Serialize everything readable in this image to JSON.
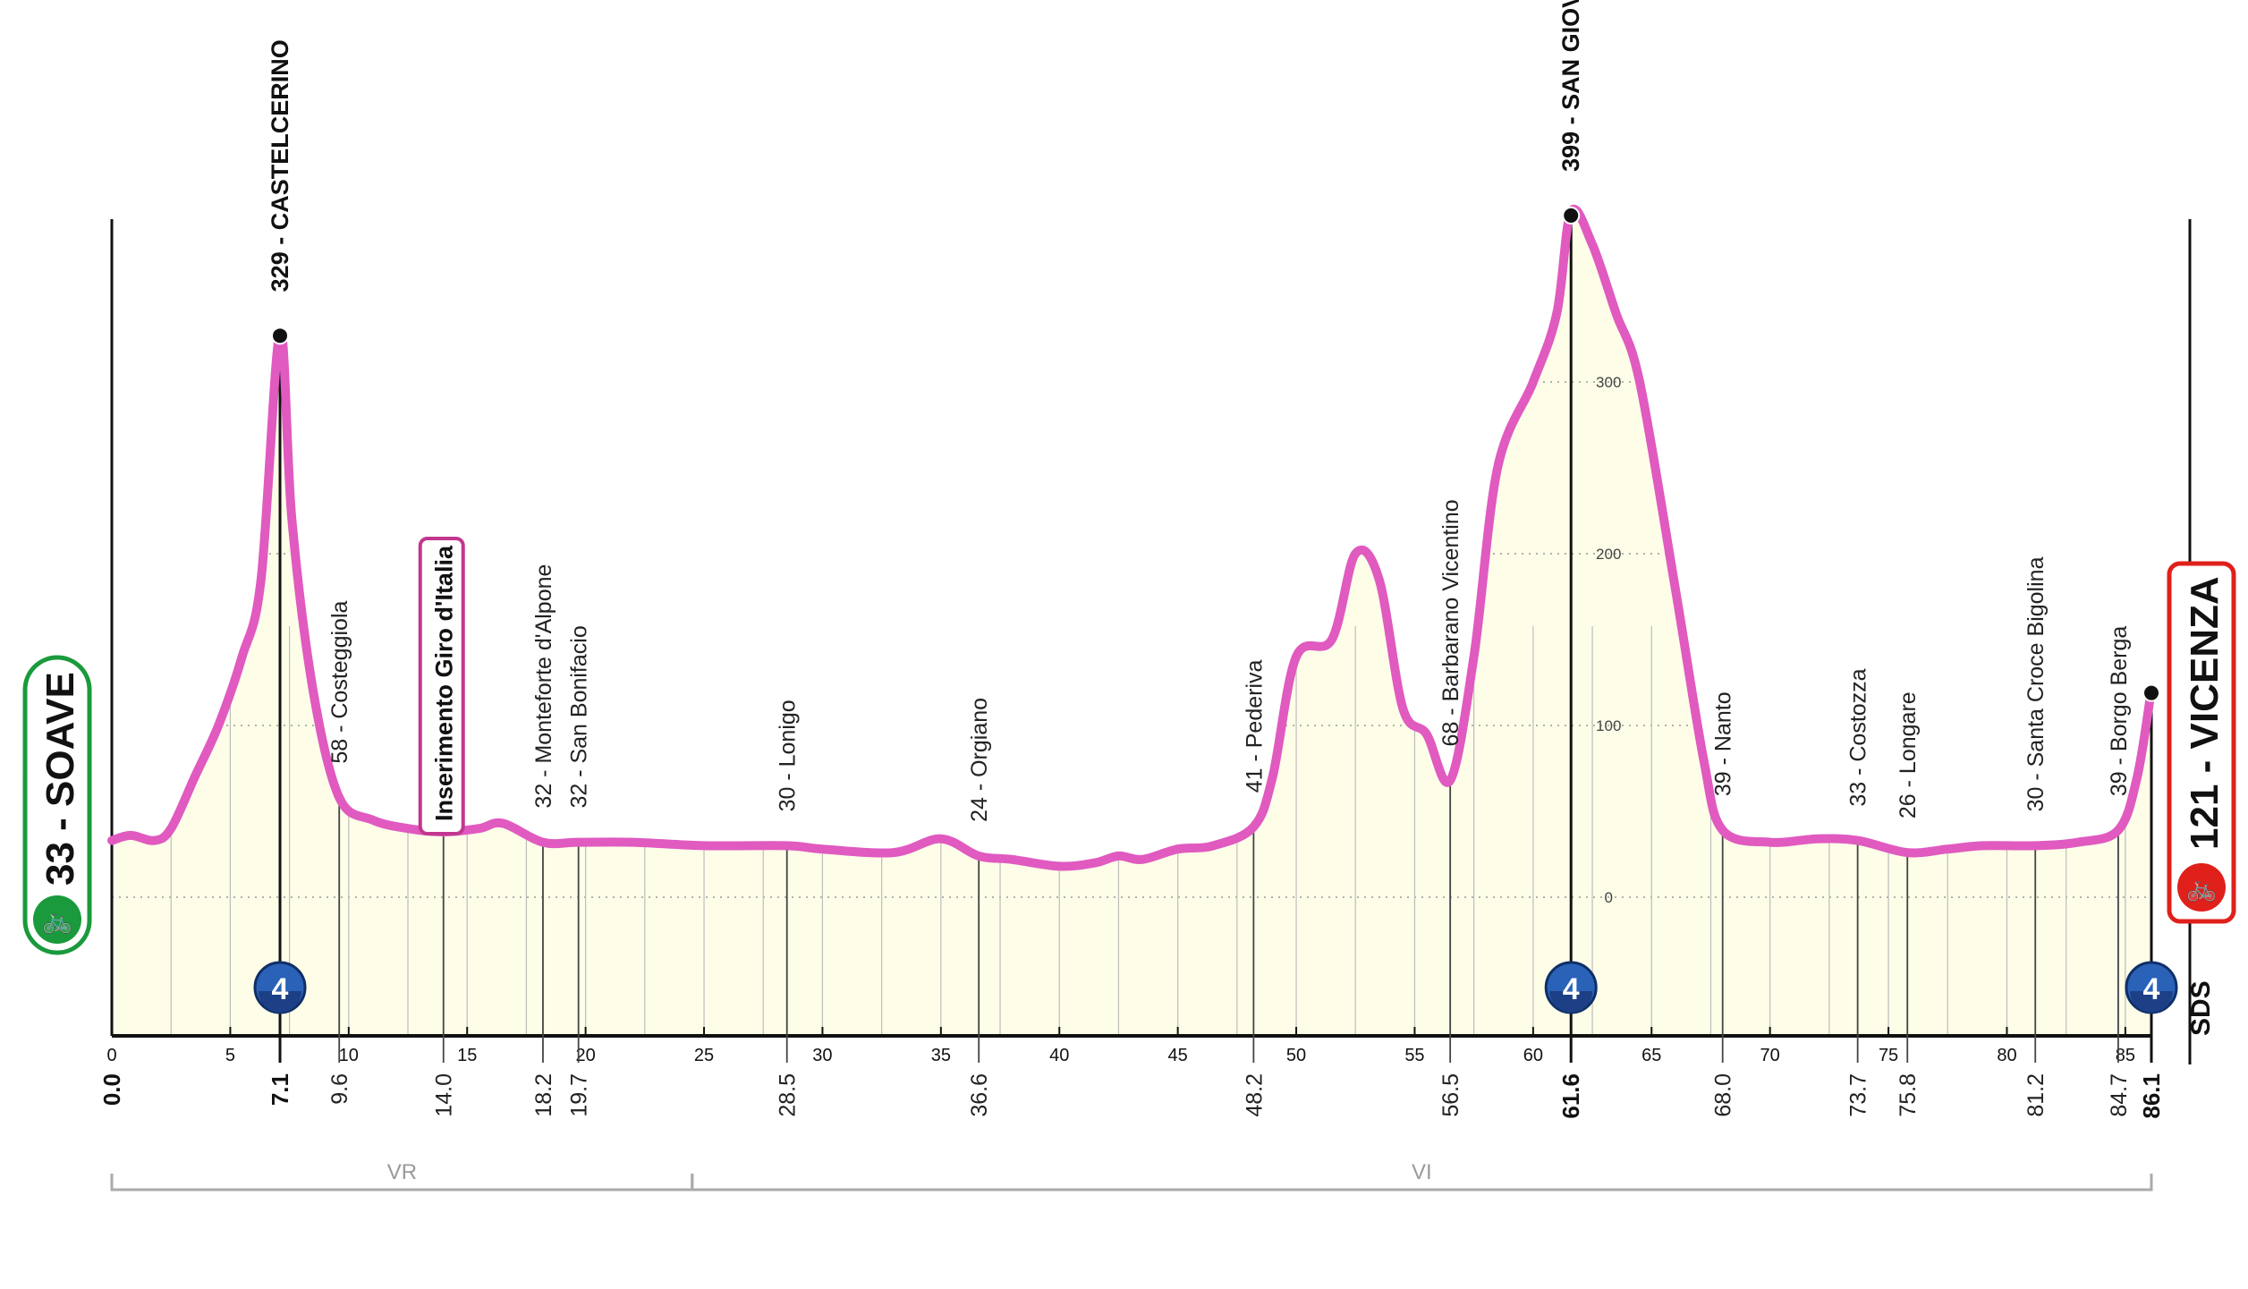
{
  "chart_data": {
    "type": "area",
    "title": "",
    "xlabel": "",
    "ylabel": "",
    "xlim": [
      0,
      86.1
    ],
    "x_ticks": [
      0,
      5,
      10,
      15,
      20,
      25,
      30,
      35,
      40,
      45,
      50,
      55,
      60,
      65,
      70,
      75,
      80,
      85
    ],
    "altitude_scale": [
      "300",
      "200",
      "100",
      "0"
    ],
    "profile": [
      [
        0,
        33
      ],
      [
        0.8,
        36
      ],
      [
        1.8,
        33
      ],
      [
        2.5,
        40
      ],
      [
        3.5,
        70
      ],
      [
        4.5,
        100
      ],
      [
        5.5,
        140
      ],
      [
        6.3,
        185
      ],
      [
        7.1,
        329
      ],
      [
        7.6,
        220
      ],
      [
        8.5,
        120
      ],
      [
        9.6,
        58
      ],
      [
        11,
        45
      ],
      [
        12.5,
        40
      ],
      [
        14.0,
        38
      ],
      [
        15.5,
        40
      ],
      [
        16.5,
        43
      ],
      [
        18.2,
        32
      ],
      [
        19.7,
        32
      ],
      [
        22,
        32
      ],
      [
        25,
        30
      ],
      [
        28.5,
        30
      ],
      [
        30,
        28
      ],
      [
        33,
        26
      ],
      [
        35,
        34
      ],
      [
        36.6,
        24
      ],
      [
        38,
        22
      ],
      [
        40,
        18
      ],
      [
        41.5,
        20
      ],
      [
        42.5,
        24
      ],
      [
        43.5,
        22
      ],
      [
        45,
        28
      ],
      [
        46.5,
        30
      ],
      [
        48.2,
        41
      ],
      [
        49,
        70
      ],
      [
        50,
        140
      ],
      [
        51.5,
        150
      ],
      [
        52.5,
        200
      ],
      [
        53.5,
        185
      ],
      [
        54.5,
        110
      ],
      [
        55.5,
        95
      ],
      [
        56.5,
        68
      ],
      [
        57.5,
        140
      ],
      [
        58.5,
        250
      ],
      [
        60,
        300
      ],
      [
        61.0,
        340
      ],
      [
        61.6,
        399
      ],
      [
        62.5,
        380
      ],
      [
        63.5,
        340
      ],
      [
        64.5,
        300
      ],
      [
        66,
        180
      ],
      [
        67.2,
        80
      ],
      [
        68.0,
        39
      ],
      [
        70,
        32
      ],
      [
        72,
        34
      ],
      [
        73.7,
        33
      ],
      [
        75.8,
        26
      ],
      [
        77.5,
        28
      ],
      [
        79,
        30
      ],
      [
        81.2,
        30
      ],
      [
        83,
        32
      ],
      [
        84.7,
        39
      ],
      [
        85.5,
        70
      ],
      [
        86.1,
        121
      ]
    ],
    "waypoints": [
      {
        "km": "0.0",
        "x": 0.0,
        "alt": 33,
        "label": "",
        "major": true
      },
      {
        "km": "7.1",
        "x": 7.1,
        "alt": 329,
        "label": "329 - CASTELCERINO",
        "major": true,
        "gpm": "4"
      },
      {
        "km": "9.6",
        "x": 9.6,
        "alt": 58,
        "label": "58 - Costeggiola",
        "major": false
      },
      {
        "km": "14.0",
        "x": 14.0,
        "alt": 38,
        "label": "",
        "major": false,
        "boxed": true
      },
      {
        "km": "18.2",
        "x": 18.2,
        "alt": 32,
        "label": "32 - Monteforte d'Alpone",
        "major": false
      },
      {
        "km": "19.7",
        "x": 19.7,
        "alt": 32,
        "label": "32 - San Bonifacio",
        "major": false
      },
      {
        "km": "28.5",
        "x": 28.5,
        "alt": 30,
        "label": "30 - Lonigo",
        "major": false
      },
      {
        "km": "36.6",
        "x": 36.6,
        "alt": 24,
        "label": "24 - Orgiano",
        "major": false
      },
      {
        "km": "48.2",
        "x": 48.2,
        "alt": 41,
        "label": "41 - Pederiva",
        "major": false
      },
      {
        "km": "56.5",
        "x": 56.5,
        "alt": 68,
        "label": "68 - Barbarano Vicentino",
        "major": false
      },
      {
        "km": "61.6",
        "x": 61.6,
        "alt": 399,
        "label": "399 - SAN GIOVANNI IN MONTE",
        "major": true,
        "gpm": "4"
      },
      {
        "km": "68.0",
        "x": 68.0,
        "alt": 39,
        "label": "39 - Nanto",
        "major": false
      },
      {
        "km": "73.7",
        "x": 73.7,
        "alt": 33,
        "label": "33 - Costozza",
        "major": false
      },
      {
        "km": "75.8",
        "x": 75.8,
        "alt": 26,
        "label": "26 - Longare",
        "major": false
      },
      {
        "km": "81.2",
        "x": 81.2,
        "alt": 30,
        "label": "30 - Santa Croce Bigolina",
        "major": false
      },
      {
        "km": "84.7",
        "x": 84.7,
        "alt": 39,
        "label": "39 - Borgo Berga",
        "major": false
      },
      {
        "km": "86.1",
        "x": 86.1,
        "alt": 121,
        "label": "",
        "major": true,
        "gpm": "4"
      }
    ],
    "boxed_label": "Inserimento Giro d'Italia",
    "start": {
      "label": "33 - SOAVE",
      "color": "#1a9a3c"
    },
    "finish": {
      "label": "121 - VICENZA",
      "color": "#e0201b"
    },
    "regions": [
      {
        "name": "VR",
        "from": 0,
        "to": 24.5
      },
      {
        "name": "VI",
        "from": 24.5,
        "to": 86.1
      }
    ],
    "brand": "SDS",
    "colors": {
      "profile": "#e05ac0",
      "fill": "#fdfde8",
      "grid": "#9a9a9a",
      "gpm": "#2a62b8"
    }
  }
}
